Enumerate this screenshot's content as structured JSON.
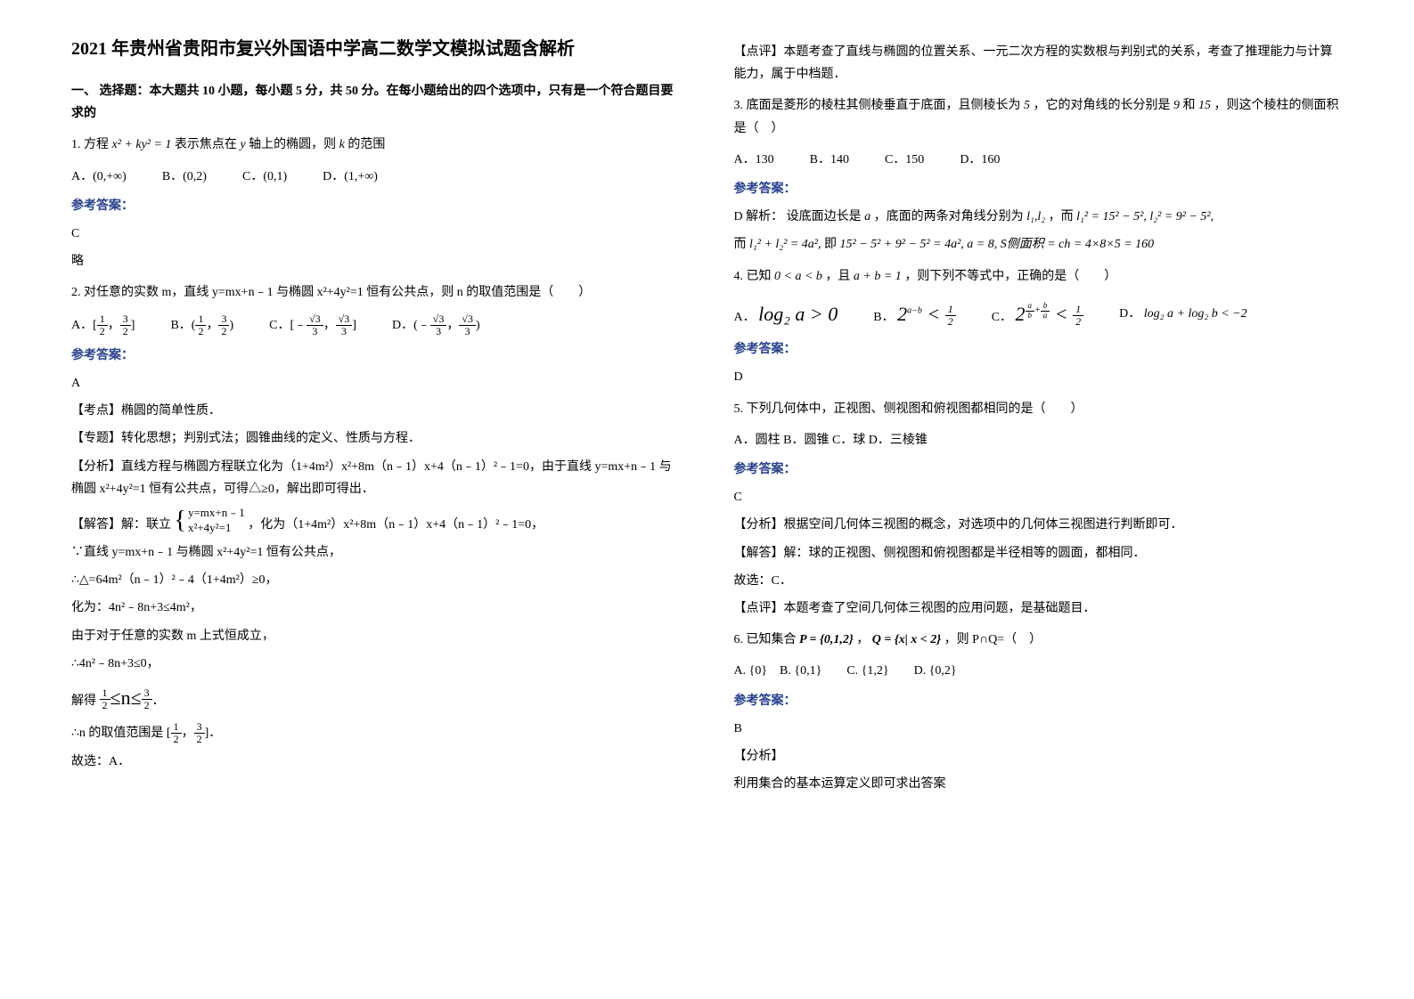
{
  "title": "2021 年贵州省贵阳市复兴外国语中学高二数学文模拟试题含解析",
  "section1_title": "一、 选择题：本大题共 10 小题，每小题 5 分，共 50 分。在每小题给出的四个选项中，只有是一个符合题目要求的",
  "q1": {
    "text_a": "1. 方程",
    "expr": "x² + ky² = 1",
    "text_b": "表示焦点在",
    "y": "y",
    "text_c": "轴上的椭圆，则",
    "k": "k",
    "text_d": "的范围",
    "A": "A．(0,+∞)",
    "B": "B．(0,2)",
    "C": "C．(0,1)",
    "D": "D．(1,+∞)"
  },
  "answer_label": "参考答案：",
  "q1_answer": "C",
  "q1_note": "略",
  "q2": {
    "text": "2. 对任意的实数 m，直线 y=mx+n﹣1 与椭圆 x²+4y²=1 恒有公共点，则 n 的取值范围是（　　）",
    "A_pre": "A．[",
    "B_pre": "B．(",
    "C_pre": "C．[﹣",
    "D_pre": "D．(﹣"
  },
  "q2_answer": "A",
  "q2_topic": "【考点】椭圆的简单性质．",
  "q2_special": "【专题】转化思想；判别式法；圆锥曲线的定义、性质与方程．",
  "q2_analysis": "【分析】直线方程与椭圆方程联立化为（1+4m²）x²+8m（n﹣1）x+4（n﹣1）²﹣1=0，由于直线 y=mx+n﹣1 与椭圆 x²+4y²=1 恒有公共点，可得△≥0，解出即可得出．",
  "q2_solve_pre": "【解答】解：联立",
  "q2_sys_top": "y=mx+n﹣1",
  "q2_sys_bot": "x²+4y²=1",
  "q2_solve_post": "，化为（1+4m²）x²+8m（n﹣1）x+4（n﹣1）²﹣1=0，",
  "q2_l1": "∵直线 y=mx+n﹣1 与椭圆 x²+4y²=1 恒有公共点，",
  "q2_l2": "∴△=64m²（n﹣1）²﹣4（1+4m²）≥0，",
  "q2_l3": "化为：4n²﹣8n+3≤4m²，",
  "q2_l4": "由于对于任意的实数 m 上式恒成立，",
  "q2_l5": "∴4n²﹣8n+3≤0，",
  "q2_l6_pre": "解得",
  "q2_l7_pre": "∴n 的取值范围是 [",
  "q2_l8": "故选：A．",
  "q2_review": "【点评】本题考查了直线与椭圆的位置关系、一元二次方程的实数根与判别式的关系，考查了推理能力与计算能力，属于中档题．",
  "q3": {
    "text_a": "3. 底面是菱形的棱柱其侧棱垂直于底面，且侧棱长为",
    "v5": "5",
    "text_b": "，它的对角线的长分别是",
    "v9": "9",
    "and": "和",
    "v15": "15",
    "text_c": "，则这个棱柱的侧面积是（　）",
    "A": "A．130",
    "B": "B．140",
    "C": "C．150",
    "D": "D．160"
  },
  "q3_ans_pre": "D  解析：",
  "q3_ans_t1": "设底面边长是",
  "q3_a": "a",
  "q3_ans_t2": "，底面的两条对角线分别为",
  "q3_l1l2": "l₁,l₂",
  "q3_ans_t3": "，而",
  "q3_expr1": "l₁² = 15² − 5², l₂² = 9² − 5²,",
  "q3_ans_t4": "而",
  "q3_expr2a": "l₁² + l₂² = 4a²,",
  "q3_ans_t5": "即",
  "q3_expr2b": "15² − 5² + 9² − 5² = 4a², a = 8, S侧面积 = ch = 4×8×5 = 160",
  "q4": {
    "text_a": "4. 已知",
    "e1": "0 < a < b",
    "text_b": "，且",
    "e2": "a + b = 1",
    "text_c": "，则下列不等式中，正确的是（　　）",
    "A_pre": "A．",
    "A": "log₂ a > 0",
    "B_pre": "B．",
    "C_pre": "C．",
    "D_pre": "D．",
    "D": "log₂ a + log₂ b < −2"
  },
  "q4_answer": "D",
  "q5": {
    "text": "5. 下列几何体中，正视图、侧视图和俯视图都相同的是（　　）",
    "opts": "A．圆柱 B．圆锥 C．球 D．三棱锥"
  },
  "q5_answer": "C",
  "q5_analysis": "【分析】根据空间几何体三视图的概念，对选项中的几何体三视图进行判断即可．",
  "q5_solve": "【解答】解：球的正视图、侧视图和俯视图都是半径相等的圆面，都相同．",
  "q5_pick": "故选：C．",
  "q5_review": "【点评】本题考查了空间几何体三视图的应用问题，是基础题目．",
  "q6": {
    "text_a": "6. 已知集合",
    "P": "P = {0,1,2}",
    "comma": "，",
    "Q": "Q = {x| x < 2}",
    "text_b": "，则 P∩Q=（　）",
    "opts": "A. {0}　B. {0,1}　　C. {1,2}　　D. {0,2}"
  },
  "q6_answer": "B",
  "q6_analysis_label": "【分析】",
  "q6_analysis": "利用集合的基本运算定义即可求出答案",
  "fracs": {
    "half_num": "1",
    "half_den": "2",
    "three_half_num": "3",
    "three_half_den": "2",
    "r3_num": "√3",
    "r3_den": "3"
  },
  "colors": {
    "answer_label": "#27408b"
  }
}
